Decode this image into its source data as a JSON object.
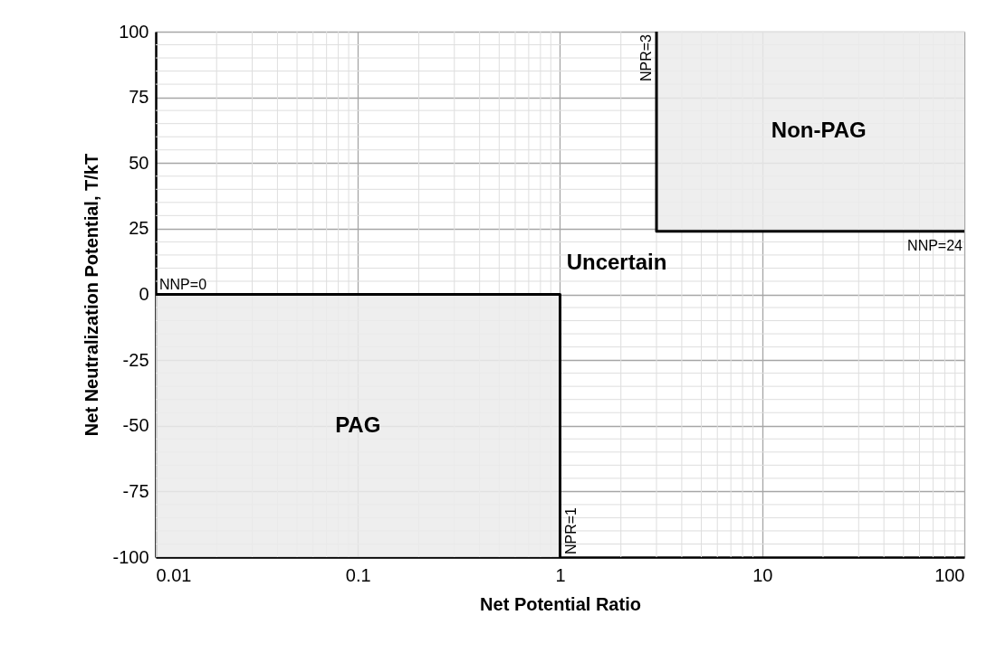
{
  "chart_data": {
    "type": "line",
    "xlabel": "Net Potential Ratio",
    "ylabel": "Net Neutralization Potential, T/kT",
    "log": "x",
    "grid": true,
    "marker": "none",
    "line_style": "solid",
    "xlim": [
      0.01,
      100
    ],
    "xticks": [
      0.01,
      0.1,
      1,
      10,
      100
    ],
    "ylim": [
      -100,
      100
    ],
    "yticks": [
      -100,
      -75,
      -50,
      -25,
      0,
      25,
      50,
      75,
      100
    ],
    "series": [
      {
        "color": "#000000",
        "x": [
          0.01,
          1,
          1
        ],
        "values": [
          0,
          0,
          -100
        ],
        "lower": [
          -100,
          -100,
          -100
        ],
        "upper": [
          0,
          0,
          0
        ]
      },
      {
        "color": "#000000",
        "x": [
          3,
          3,
          100
        ],
        "values": [
          100,
          24,
          24
        ],
        "lower": [
          24,
          24,
          24
        ],
        "upper": [
          100,
          100,
          100
        ]
      }
    ],
    "annotations": [
      {
        "text": "NNP=0",
        "x": 0.01,
        "y": 0
      },
      {
        "text": "NPR=1",
        "x": 1,
        "y": -100
      },
      {
        "text": "NPR=3",
        "x": 3,
        "y": 100
      },
      {
        "text": "NNP=24",
        "x": 100,
        "y": 24
      },
      "PAG",
      "Non-PAG",
      "Uncertain"
    ]
  }
}
